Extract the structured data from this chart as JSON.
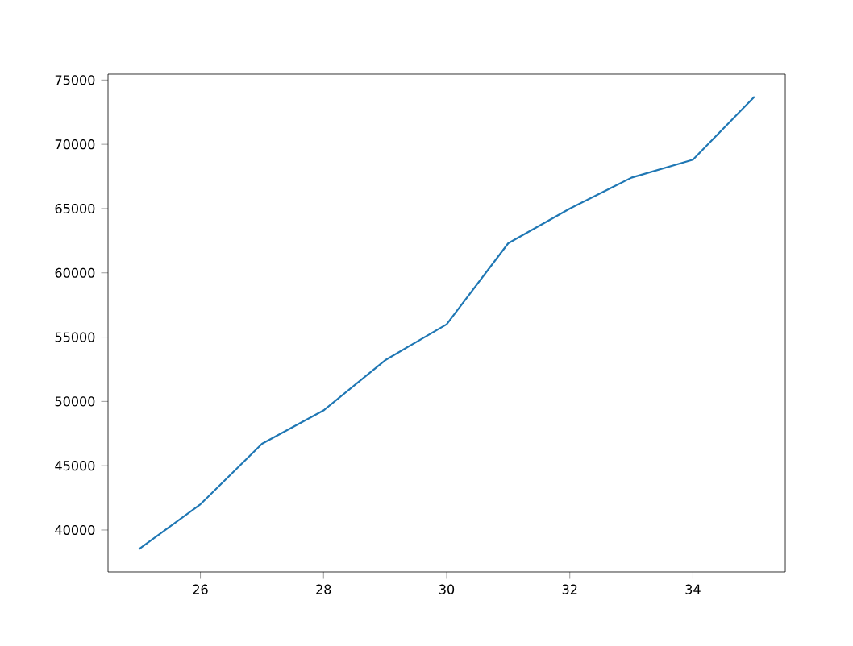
{
  "chart_data": {
    "type": "line",
    "x": [
      25,
      26,
      27,
      28,
      29,
      30,
      31,
      32,
      33,
      34,
      35
    ],
    "series": [
      {
        "color": "#1f77b4",
        "values": [
          38500,
          42000,
          46700,
          49300,
          53200,
          56000,
          62300,
          65000,
          67400,
          68800,
          73700
        ]
      }
    ],
    "xlim": [
      24.5,
      35.5
    ],
    "ylim": [
      36740,
      75460
    ],
    "xticks": [
      26,
      28,
      30,
      32,
      34
    ],
    "yticks": [
      40000,
      45000,
      50000,
      55000,
      60000,
      65000,
      70000,
      75000
    ],
    "grid": false,
    "marker": "none",
    "line_style": "solid"
  }
}
